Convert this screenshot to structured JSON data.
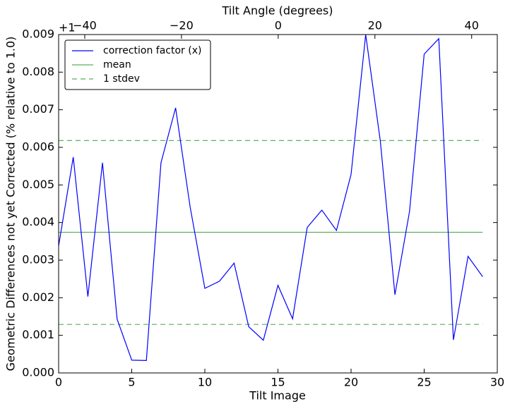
{
  "chart_data": {
    "type": "line",
    "xlabel": "Tilt Image",
    "ylabel": "Geometric Differences not yet Corrected (% relative to 1.0)",
    "x2label": "Tilt Angle (degrees)",
    "x2offset_label": "+1",
    "x": [
      0,
      1,
      2,
      3,
      4,
      5,
      6,
      7,
      8,
      9,
      10,
      11,
      12,
      13,
      14,
      15,
      16,
      17,
      18,
      19,
      20,
      21,
      22,
      23,
      24,
      25,
      26,
      27,
      28,
      29
    ],
    "series": [
      {
        "name": "correction factor (x)",
        "color": "#0000ff",
        "values": [
          0.00338,
          0.00574,
          0.00203,
          0.00559,
          0.00143,
          0.00034,
          0.00033,
          0.00559,
          0.00705,
          0.0044,
          0.00225,
          0.00244,
          0.00292,
          0.00123,
          0.00087,
          0.00233,
          0.00144,
          0.00387,
          0.00433,
          0.00379,
          0.00528,
          0.009,
          0.00617,
          0.00208,
          0.0043,
          0.00848,
          0.00889,
          0.00088,
          0.0031,
          0.00256
        ]
      }
    ],
    "hlines": [
      {
        "name": "mean",
        "color": "#5aaf5a",
        "dashed": false,
        "values": [
          0.00374
        ]
      },
      {
        "name": "1 stdev",
        "color": "#5aaf5a",
        "dashed": true,
        "values": [
          0.00129,
          0.00618
        ]
      }
    ],
    "xlim": [
      0,
      30
    ],
    "xticks": [
      0,
      5,
      10,
      15,
      20,
      25,
      30
    ],
    "x2lim": [
      -45.4,
      45.3
    ],
    "x2ticks": [
      {
        "value": -40,
        "label": "−40"
      },
      {
        "value": -20,
        "label": "−20"
      },
      0,
      20,
      40
    ],
    "ylim": [
      0,
      0.009
    ],
    "yticks": [
      {
        "value": 0,
        "label": "0.000"
      },
      0.001,
      0.002,
      0.003,
      0.004,
      0.005,
      0.006,
      0.007,
      0.008,
      0.009
    ],
    "legend": "upper left"
  }
}
